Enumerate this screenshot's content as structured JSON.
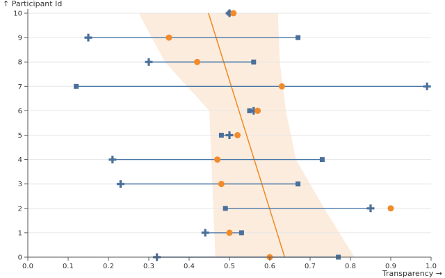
{
  "chart_data": {
    "type": "scatter",
    "title": "",
    "xlabel": "Transparency →",
    "ylabel": "↑ Participant Id",
    "xlim": [
      0,
      1
    ],
    "ylim": [
      0,
      10
    ],
    "xticks": [
      "0.0",
      "0.1",
      "0.2",
      "0.3",
      "0.4",
      "0.5",
      "0.6",
      "0.7",
      "0.8",
      "0.9",
      "1.0"
    ],
    "yticks": [
      "0",
      "1",
      "2",
      "3",
      "4",
      "5",
      "6",
      "7",
      "8",
      "9",
      "10"
    ],
    "participants": [
      {
        "id": 0,
        "square": 0.77,
        "plus": 0.32,
        "circle": 0.6
      },
      {
        "id": 1,
        "square": 0.53,
        "plus": 0.44,
        "circle": 0.5
      },
      {
        "id": 2,
        "square": 0.49,
        "plus": 0.85,
        "circle": 0.9
      },
      {
        "id": 3,
        "square": 0.67,
        "plus": 0.23,
        "circle": 0.48
      },
      {
        "id": 4,
        "square": 0.73,
        "plus": 0.21,
        "circle": 0.47
      },
      {
        "id": 5,
        "square": 0.48,
        "plus": 0.5,
        "circle": 0.52
      },
      {
        "id": 6,
        "square": 0.55,
        "plus": 0.56,
        "circle": 0.57
      },
      {
        "id": 7,
        "square": 0.12,
        "plus": 0.99,
        "circle": 0.63
      },
      {
        "id": 8,
        "square": 0.56,
        "plus": 0.3,
        "circle": 0.42
      },
      {
        "id": 9,
        "square": 0.67,
        "plus": 0.15,
        "circle": 0.35
      },
      {
        "id": 10,
        "square": 0.5,
        "plus": 0.5,
        "circle": 0.51
      }
    ],
    "trend": {
      "y_start": 0,
      "x_start": 0.637,
      "y_end": 10,
      "x_end": 0.448
    },
    "band": {
      "lower": [
        [
          0,
          0.465
        ],
        [
          2,
          0.46
        ],
        [
          4,
          0.455
        ],
        [
          6,
          0.45
        ],
        [
          8,
          0.34
        ],
        [
          10,
          0.275
        ]
      ],
      "upper": [
        [
          0,
          0.81
        ],
        [
          2,
          0.735
        ],
        [
          4,
          0.665
        ],
        [
          6,
          0.64
        ],
        [
          8,
          0.625
        ],
        [
          10,
          0.62
        ]
      ]
    },
    "colors": {
      "square": "#4a6f9a",
      "plus": "#4a6f9a",
      "circle": "#f18b2a",
      "range": "#4a78a8",
      "trend": "#ee8a22",
      "band": "#fbe4d0"
    }
  }
}
